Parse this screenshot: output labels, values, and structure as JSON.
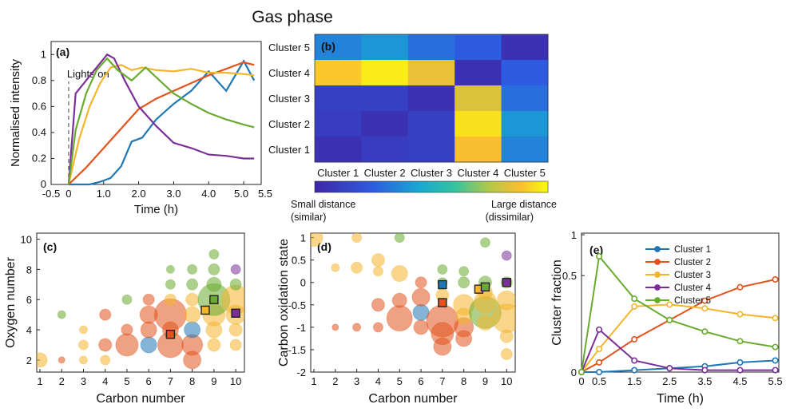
{
  "title": "Gas phase",
  "colors": {
    "cluster1": "#1f77b4",
    "cluster2": "#e2531e",
    "cluster3": "#f4b52b",
    "cluster4": "#7b2f99",
    "cluster5": "#6aab2f"
  },
  "chart_data": [
    {
      "panel": "(a)",
      "type": "line",
      "xlabel": "Time (h)",
      "ylabel": "Normalised intensity",
      "xlim": [
        -0.5,
        5.5
      ],
      "ylim": [
        0,
        1.1
      ],
      "xticks": [
        "-0.5",
        "0",
        "1.0",
        "2.0",
        "3.0",
        "4.0",
        "5.0",
        "5.5"
      ],
      "yticks": [
        "0",
        "0.2",
        "0.4",
        "0.6",
        "0.8",
        "1"
      ],
      "annotation": "Lights on",
      "annotation_x": 0,
      "series": [
        {
          "color": "cluster1",
          "x": [
            0,
            0.3,
            0.6,
            0.9,
            1.2,
            1.5,
            1.8,
            2.1,
            2.5,
            3.0,
            3.5,
            4.0,
            4.5,
            5.0,
            5.3
          ],
          "y": [
            0,
            0,
            0,
            0.02,
            0.05,
            0.14,
            0.33,
            0.36,
            0.5,
            0.62,
            0.72,
            0.87,
            0.72,
            0.95,
            0.8
          ]
        },
        {
          "color": "cluster2",
          "x": [
            0,
            0.5,
            1.0,
            1.5,
            2.0,
            2.5,
            3.0,
            3.5,
            4.0,
            4.5,
            5.0,
            5.3
          ],
          "y": [
            0,
            0.13,
            0.28,
            0.43,
            0.58,
            0.66,
            0.72,
            0.78,
            0.84,
            0.89,
            0.94,
            0.92
          ]
        },
        {
          "color": "cluster3",
          "x": [
            0,
            0.3,
            0.6,
            0.9,
            1.2,
            1.5,
            1.8,
            2.1,
            2.5,
            3.0,
            3.5,
            4.0,
            4.5,
            5.0,
            5.3
          ],
          "y": [
            0,
            0.35,
            0.6,
            0.78,
            0.9,
            0.92,
            0.88,
            0.9,
            0.88,
            0.87,
            0.89,
            0.86,
            0.86,
            0.85,
            0.84
          ]
        },
        {
          "color": "cluster4",
          "x": [
            0,
            0.2,
            0.5,
            0.8,
            1.1,
            1.3,
            1.6,
            2.0,
            2.5,
            3.0,
            3.5,
            4.0,
            4.5,
            5.0,
            5.3
          ],
          "y": [
            0,
            0.7,
            0.8,
            0.9,
            1.0,
            0.97,
            0.8,
            0.6,
            0.45,
            0.32,
            0.28,
            0.23,
            0.22,
            0.2,
            0.2
          ]
        },
        {
          "color": "cluster5",
          "x": [
            0,
            0.2,
            0.5,
            0.8,
            1.1,
            1.4,
            1.8,
            2.2,
            2.6,
            3.0,
            3.5,
            4.0,
            4.5,
            5.0,
            5.3
          ],
          "y": [
            0,
            0.42,
            0.7,
            0.88,
            0.97,
            0.88,
            0.8,
            0.9,
            0.8,
            0.7,
            0.62,
            0.55,
            0.5,
            0.46,
            0.44
          ]
        }
      ]
    },
    {
      "panel": "(b)",
      "type": "heatmap",
      "rows": [
        "Cluster 5",
        "Cluster 4",
        "Cluster 3",
        "Cluster 2",
        "Cluster 1"
      ],
      "columns": [
        "Cluster 1",
        "Cluster 2",
        "Cluster 3",
        "Cluster 4",
        "Cluster 5"
      ],
      "values": [
        [
          0.35,
          0.4,
          0.3,
          0.25,
          0.05
        ],
        [
          0.9,
          0.97,
          0.85,
          0.05,
          0.25
        ],
        [
          0.12,
          0.12,
          0.05,
          0.82,
          0.3
        ],
        [
          0.1,
          0.05,
          0.12,
          0.95,
          0.4
        ],
        [
          0.05,
          0.1,
          0.12,
          0.88,
          0.35
        ]
      ],
      "colorbar_low": "Small distance",
      "colorbar_low_sub": "(similar)",
      "colorbar_high": "Large distance",
      "colorbar_high_sub": "(dissimilar)"
    },
    {
      "panel": "(c)",
      "type": "scatter",
      "xlabel": "Carbon number",
      "ylabel": "Oxygen number",
      "xlim": [
        1,
        10.4
      ],
      "ylim": [
        1.2,
        10.4
      ],
      "xticks": [
        1,
        2,
        3,
        4,
        5,
        6,
        7,
        8,
        9,
        10
      ],
      "yticks": [
        2,
        4,
        6,
        8,
        10
      ],
      "points": [
        [
          1,
          2,
          "cluster3",
          9
        ],
        [
          2,
          2,
          "cluster2",
          4
        ],
        [
          2,
          5,
          "cluster5",
          5
        ],
        [
          3,
          2,
          "cluster3",
          5
        ],
        [
          3,
          3,
          "cluster3",
          6
        ],
        [
          3,
          4,
          "cluster3",
          5
        ],
        [
          4,
          2,
          "cluster3",
          6
        ],
        [
          4,
          3,
          "cluster2",
          8
        ],
        [
          4,
          5,
          "cluster2",
          7
        ],
        [
          5,
          3,
          "cluster2",
          14
        ],
        [
          5,
          4,
          "cluster2",
          7
        ],
        [
          5,
          6,
          "cluster5",
          6
        ],
        [
          6,
          3,
          "cluster1",
          10
        ],
        [
          6,
          4,
          "cluster2",
          10
        ],
        [
          6,
          5,
          "cluster2",
          11
        ],
        [
          6,
          6,
          "cluster2",
          7
        ],
        [
          7,
          3,
          "cluster2",
          16
        ],
        [
          7,
          4,
          "cluster2",
          10
        ],
        [
          7,
          5,
          "cluster2",
          20
        ],
        [
          7,
          6,
          "cluster3",
          7
        ],
        [
          7,
          7,
          "cluster5",
          6
        ],
        [
          7,
          8,
          "cluster5",
          5
        ],
        [
          8,
          2,
          "cluster2",
          11
        ],
        [
          8,
          3,
          "cluster2",
          13
        ],
        [
          8,
          4,
          "cluster1",
          10
        ],
        [
          8,
          5,
          "cluster3",
          10
        ],
        [
          8,
          6,
          "cluster3",
          8
        ],
        [
          8,
          7,
          "cluster5",
          7
        ],
        [
          8,
          8,
          "cluster5",
          6
        ],
        [
          9,
          3,
          "cluster3",
          8
        ],
        [
          9,
          4,
          "cluster3",
          10
        ],
        [
          9,
          5,
          "cluster3",
          14
        ],
        [
          9,
          6,
          "cluster5",
          20
        ],
        [
          9,
          7,
          "cluster5",
          9
        ],
        [
          9,
          8,
          "cluster5",
          7
        ],
        [
          9,
          9,
          "cluster5",
          6
        ],
        [
          10,
          3,
          "cluster3",
          7
        ],
        [
          10,
          4,
          "cluster3",
          8
        ],
        [
          10,
          5,
          "cluster3",
          12
        ],
        [
          10,
          6,
          "cluster3",
          18
        ],
        [
          10,
          7,
          "cluster5",
          7
        ],
        [
          10,
          8,
          "cluster4",
          6
        ]
      ],
      "squares": [
        [
          7,
          3.7,
          "cluster2"
        ],
        [
          8.6,
          5.3,
          "cluster3"
        ],
        [
          9,
          6,
          "cluster5"
        ],
        [
          10,
          5.1,
          "cluster4"
        ]
      ]
    },
    {
      "panel": "(d)",
      "type": "scatter",
      "xlabel": "Carbon number",
      "ylabel": "Carbon oxidation state",
      "xlim": [
        1,
        10.4
      ],
      "ylim": [
        -2,
        1.1
      ],
      "xticks": [
        1,
        2,
        3,
        4,
        5,
        6,
        7,
        8,
        9,
        10
      ],
      "yticks": [
        -2,
        -1.5,
        -1,
        -0.5,
        0,
        0.5,
        1
      ],
      "points": [
        [
          1,
          1,
          "cluster3",
          11
        ],
        [
          2,
          -1,
          "cluster2",
          4
        ],
        [
          2,
          0.33,
          "cluster3",
          5
        ],
        [
          3,
          1,
          "cluster3",
          6
        ],
        [
          3,
          0.33,
          "cluster3",
          7
        ],
        [
          3,
          -1,
          "cluster2",
          5
        ],
        [
          4,
          0.5,
          "cluster3",
          8
        ],
        [
          4,
          0.25,
          "cluster3",
          6
        ],
        [
          4,
          -0.5,
          "cluster2",
          8
        ],
        [
          4,
          -1,
          "cluster2",
          6
        ],
        [
          5,
          1,
          "cluster5",
          6
        ],
        [
          5,
          0.2,
          "cluster3",
          10
        ],
        [
          5,
          -0.8,
          "cluster2",
          16
        ],
        [
          5,
          -0.4,
          "cluster2",
          9
        ],
        [
          6,
          -0.67,
          "cluster1",
          10
        ],
        [
          6,
          -0.33,
          "cluster2",
          11
        ],
        [
          6,
          -1,
          "cluster2",
          9
        ],
        [
          6,
          0,
          "cluster2",
          7
        ],
        [
          7,
          -0.86,
          "cluster2",
          20
        ],
        [
          7,
          -1.14,
          "cluster2",
          14
        ],
        [
          7,
          -1.43,
          "cluster2",
          11
        ],
        [
          7,
          -0.29,
          "cluster3",
          8
        ],
        [
          7,
          0.29,
          "cluster5",
          6
        ],
        [
          7,
          0,
          "cluster5",
          6
        ],
        [
          8,
          -0.5,
          "cluster3",
          13
        ],
        [
          8,
          -1,
          "cluster2",
          12
        ],
        [
          8,
          -1.25,
          "cluster2",
          10
        ],
        [
          8,
          -0.75,
          "cluster3",
          10
        ],
        [
          8,
          0,
          "cluster5",
          7
        ],
        [
          8,
          0.25,
          "cluster5",
          6
        ],
        [
          9,
          -0.67,
          "cluster5",
          20
        ],
        [
          9,
          -0.44,
          "cluster3",
          14
        ],
        [
          9,
          -0.89,
          "cluster3",
          10
        ],
        [
          9,
          -0.22,
          "cluster3",
          9
        ],
        [
          9,
          0,
          "cluster5",
          8
        ],
        [
          9,
          0.89,
          "cluster5",
          6
        ],
        [
          10,
          -0.8,
          "cluster3",
          18
        ],
        [
          10,
          -0.4,
          "cluster3",
          12
        ],
        [
          10,
          -1.2,
          "cluster3",
          8
        ],
        [
          10,
          -1.6,
          "cluster3",
          7
        ],
        [
          10,
          0,
          "cluster5",
          7
        ],
        [
          10,
          0.6,
          "cluster4",
          6
        ]
      ],
      "squares": [
        [
          7,
          -0.05,
          "cluster1"
        ],
        [
          7,
          -0.45,
          "cluster2"
        ],
        [
          8.7,
          -0.15,
          "cluster3"
        ],
        [
          9,
          -0.1,
          "cluster5"
        ],
        [
          10,
          0,
          "cluster4"
        ]
      ]
    },
    {
      "panel": "(e)",
      "type": "line",
      "xlabel": "Time (h)",
      "ylabel": "Cluster fraction",
      "xlim": [
        0,
        5.6
      ],
      "ylim": [
        0,
        0.72
      ],
      "xticks": [
        "0",
        "0.5",
        "1.5",
        "2.5",
        "3.5",
        "4.5",
        "5.5"
      ],
      "yticks": [
        "0",
        "0.5",
        "1"
      ],
      "x": [
        0,
        0.5,
        1.5,
        2.5,
        3.5,
        4.5,
        5.5
      ],
      "series": [
        {
          "name": "Cluster 1",
          "color": "cluster1",
          "values": [
            0,
            0,
            0.01,
            0.02,
            0.03,
            0.05,
            0.06
          ]
        },
        {
          "name": "Cluster 2",
          "color": "cluster2",
          "values": [
            0,
            0.05,
            0.17,
            0.27,
            0.37,
            0.44,
            0.48
          ]
        },
        {
          "name": "Cluster 3",
          "color": "cluster3",
          "values": [
            0,
            0.12,
            0.34,
            0.35,
            0.33,
            0.3,
            0.28
          ]
        },
        {
          "name": "Cluster 4",
          "color": "cluster4",
          "values": [
            0,
            0.22,
            0.06,
            0.02,
            0.01,
            0.01,
            0.01
          ]
        },
        {
          "name": "Cluster 5",
          "color": "cluster5",
          "values": [
            0,
            0.6,
            0.38,
            0.27,
            0.21,
            0.16,
            0.13
          ]
        }
      ]
    }
  ]
}
